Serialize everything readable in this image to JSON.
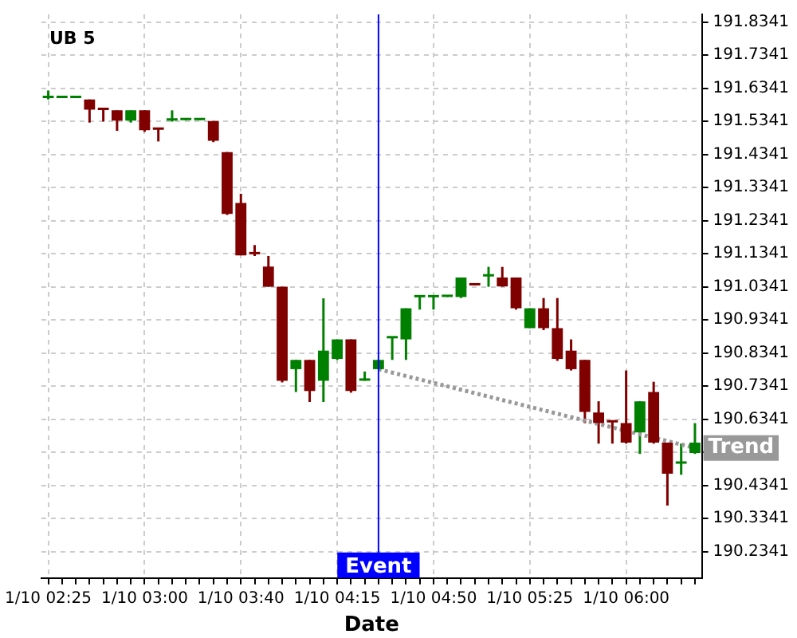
{
  "chart_data": {
    "type": "candlestick",
    "title": "UB 5",
    "xlabel": "Date",
    "categories": [
      "1/10 02:25",
      null,
      null,
      null,
      null,
      null,
      null,
      "1/10 03:00",
      null,
      null,
      null,
      null,
      null,
      null,
      "1/10 03:40",
      null,
      null,
      null,
      null,
      null,
      null,
      "1/10 04:15",
      null,
      null,
      null,
      null,
      null,
      null,
      "1/10 04:50",
      null,
      null,
      null,
      null,
      null,
      null,
      "1/10 05:25",
      null,
      null,
      null,
      null,
      null,
      null,
      "1/10 06:00",
      null,
      null,
      null,
      null,
      null
    ],
    "ohlc": [
      [
        191.604,
        191.627,
        191.6,
        191.606
      ],
      [
        191.604,
        191.606,
        191.604,
        191.606
      ],
      [
        191.604,
        191.606,
        191.604,
        191.606
      ],
      [
        191.6,
        191.6,
        191.53,
        191.569
      ],
      [
        191.571,
        191.571,
        191.533,
        191.568
      ],
      [
        191.567,
        191.567,
        191.505,
        191.536
      ],
      [
        191.536,
        191.567,
        191.53,
        191.567
      ],
      [
        191.567,
        191.567,
        191.502,
        191.507
      ],
      [
        191.51,
        191.51,
        191.473,
        191.508
      ],
      [
        191.536,
        191.567,
        191.533,
        191.538
      ],
      [
        191.537,
        191.539,
        191.537,
        191.539
      ],
      [
        191.537,
        191.539,
        191.537,
        191.539
      ],
      [
        191.535,
        191.535,
        191.471,
        191.475
      ],
      [
        191.441,
        191.441,
        191.251,
        191.254
      ],
      [
        191.287,
        191.315,
        191.129,
        191.129
      ],
      [
        191.134,
        191.16,
        191.127,
        191.132
      ],
      [
        191.095,
        191.127,
        191.034,
        191.034
      ],
      [
        191.034,
        191.034,
        190.745,
        190.75
      ],
      [
        190.785,
        190.813,
        190.716,
        190.813
      ],
      [
        190.813,
        190.813,
        190.686,
        190.719
      ],
      [
        190.75,
        190.999,
        190.686,
        190.841
      ],
      [
        190.816,
        190.875,
        190.813,
        190.875
      ],
      [
        190.875,
        190.875,
        190.714,
        190.719
      ],
      [
        190.75,
        190.778,
        190.75,
        190.752
      ],
      [
        190.785,
        190.813,
        190.785,
        190.813
      ],
      [
        190.878,
        190.88,
        190.813,
        190.88
      ],
      [
        190.875,
        190.969,
        190.813,
        190.969
      ],
      [
        191.002,
        191.004,
        190.965,
        191.004
      ],
      [
        191.002,
        191.004,
        190.965,
        191.004
      ],
      [
        191.003,
        191.005,
        191.003,
        191.005
      ],
      [
        191.003,
        191.062,
        191.0,
        191.062
      ],
      [
        191.04,
        191.04,
        191.038,
        191.038
      ],
      [
        191.065,
        191.094,
        191.034,
        191.067
      ],
      [
        191.062,
        191.094,
        191.034,
        191.035
      ],
      [
        191.062,
        191.062,
        190.965,
        190.969
      ],
      [
        190.909,
        190.969,
        190.909,
        190.969
      ],
      [
        190.969,
        191.0,
        190.903,
        190.909
      ],
      [
        190.909,
        191.0,
        190.81,
        190.816
      ],
      [
        190.841,
        190.875,
        190.781,
        190.785
      ],
      [
        190.813,
        190.813,
        190.622,
        190.656
      ],
      [
        190.654,
        190.688,
        190.56,
        190.622
      ],
      [
        190.626,
        190.626,
        190.56,
        190.624
      ],
      [
        190.622,
        190.781,
        190.56,
        190.563
      ],
      [
        190.594,
        190.688,
        190.529,
        190.688
      ],
      [
        190.716,
        190.747,
        190.56,
        190.563
      ],
      [
        190.563,
        190.563,
        190.373,
        190.469
      ],
      [
        190.499,
        190.56,
        190.466,
        190.501
      ],
      [
        190.532,
        190.622,
        190.529,
        190.563
      ]
    ],
    "colors": [
      "#008000",
      "#008000",
      "#008000",
      "#800000",
      "#800000",
      "#800000",
      "#008000",
      "#800000",
      "#800000",
      "#008000",
      "#008000",
      "#008000",
      "#800000",
      "#800000",
      "#800000",
      "#800000",
      "#800000",
      "#800000",
      "#008000",
      "#800000",
      "#008000",
      "#008000",
      "#800000",
      "#008000",
      "#008000",
      "#008000",
      "#008000",
      "#008000",
      "#008000",
      "#008000",
      "#008000",
      "#800000",
      "#008000",
      "#800000",
      "#800000",
      "#008000",
      "#800000",
      "#800000",
      "#800000",
      "#800000",
      "#800000",
      "#800000",
      "#800000",
      "#008000",
      "#800000",
      "#800000",
      "#008000",
      "#008000"
    ],
    "series": [
      {
        "type": "line",
        "name": "Trend",
        "color": "#999999",
        "line_style": "dotted",
        "values": [
          null,
          null,
          null,
          null,
          null,
          null,
          null,
          null,
          null,
          null,
          null,
          null,
          null,
          null,
          null,
          null,
          null,
          null,
          null,
          null,
          null,
          null,
          null,
          null,
          190.785,
          null,
          null,
          null,
          null,
          null,
          null,
          null,
          null,
          null,
          null,
          null,
          null,
          null,
          null,
          null,
          null,
          null,
          null,
          null,
          null,
          null,
          null,
          190.547
        ]
      }
    ],
    "annotations": [
      "Event"
    ],
    "ylim": [
      190.154,
      191.857
    ],
    "yticks": [
      191.8341,
      191.7341,
      191.6341,
      191.5341,
      191.4341,
      191.3341,
      191.2341,
      191.1341,
      191.0341,
      190.9341,
      190.8341,
      190.7341,
      190.6341,
      {
        "value": 190.5341,
        "label": null
      },
      190.4341,
      190.3341,
      190.2341
    ],
    "grid": true,
    "legend": false
  }
}
